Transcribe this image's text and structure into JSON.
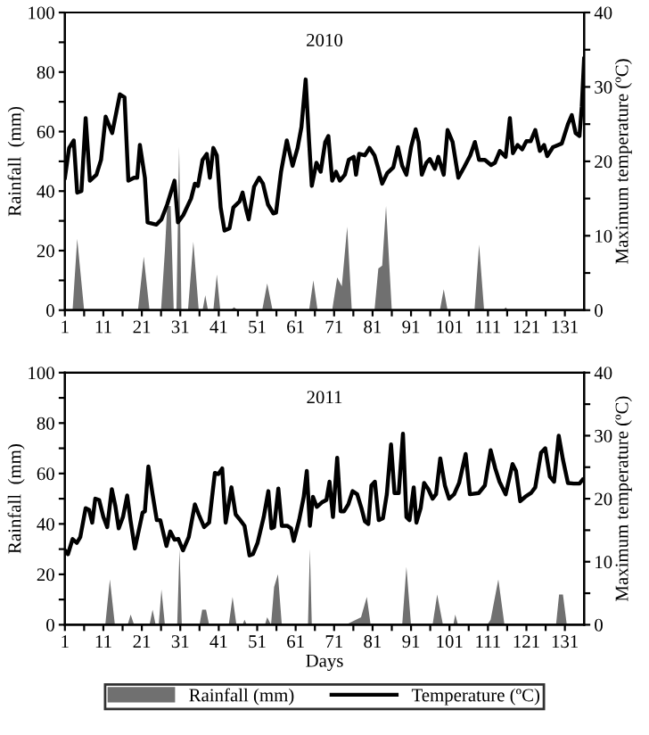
{
  "chart_data": [
    {
      "type": "area",
      "title": "2010",
      "ylabel": "Rainfall  (mm)",
      "y2label": "Maximum temperature (ºC)",
      "xlim": [
        1,
        136
      ],
      "ylim": [
        0,
        100
      ],
      "y2lim": [
        0,
        40
      ],
      "xticks": [
        1,
        {
          "value": 6,
          "label": null
        },
        11,
        {
          "value": 16,
          "label": null
        },
        21,
        {
          "value": 26,
          "label": null
        },
        31,
        {
          "value": 36,
          "label": null
        },
        41,
        {
          "value": 46,
          "label": null
        },
        51,
        {
          "value": 56,
          "label": null
        },
        61,
        {
          "value": 66,
          "label": null
        },
        71,
        {
          "value": 76,
          "label": null
        },
        81,
        {
          "value": 86,
          "label": null
        },
        91,
        {
          "value": 96,
          "label": null
        },
        101,
        {
          "value": 106,
          "label": null
        },
        111,
        {
          "value": 116,
          "label": null
        },
        121,
        {
          "value": 126,
          "label": null
        },
        131
      ],
      "yticks": [
        0,
        {
          "value": 10,
          "label": null
        },
        20,
        {
          "value": 30,
          "label": null
        },
        40,
        {
          "value": 50,
          "label": null
        },
        60,
        {
          "value": 70,
          "label": null
        },
        80,
        {
          "value": 90,
          "label": null
        },
        100
      ],
      "y2ticks": [
        0,
        {
          "value": 5,
          "label": null
        },
        10,
        {
          "value": 15,
          "label": null
        },
        20,
        {
          "value": 25,
          "label": null
        },
        30,
        {
          "value": 35,
          "label": null
        },
        40
      ],
      "grid": false,
      "legend": false,
      "series": [
        {
          "color": "#707070",
          "x": [
            1,
            3,
            4.2,
            6,
            20,
            21.5,
            23,
            26,
            27,
            27.6,
            28.5,
            29.3,
            30,
            30.7,
            31.3,
            33,
            34.4,
            35.8,
            36.8,
            37.5,
            38.2,
            39.6,
            40.5,
            41.4,
            44,
            45,
            46,
            52.3,
            53.6,
            55,
            64.5,
            65.6,
            66.7,
            70.5,
            71.8,
            73,
            74.4,
            75.6,
            81.5,
            82.5,
            83.5,
            84.5,
            86,
            98.5,
            99.5,
            100.5,
            107.5,
            108.7,
            110,
            115,
            115.6,
            116.3,
            136
          ],
          "values": [
            0,
            0,
            24,
            0,
            0,
            18,
            0,
            0,
            20,
            35,
            35,
            0,
            0,
            55,
            0,
            0,
            23,
            0,
            0,
            5,
            0,
            0,
            12,
            0,
            0,
            1,
            0,
            0,
            9,
            0,
            0,
            10,
            0,
            0,
            11,
            8,
            28,
            0,
            0,
            14,
            15,
            35,
            0,
            0,
            7,
            0,
            0,
            22,
            0,
            0,
            1,
            0,
            0
          ]
        },
        {
          "type": "line",
          "axis": "y2",
          "color": "#000000",
          "x": [
            1,
            2.1,
            3.3,
            4.2,
            5.3,
            6.4,
            7.5,
            9.2,
            10.4,
            11.6,
            13.3,
            15.3,
            16.5,
            17.5,
            19,
            19.8,
            20.5,
            21.8,
            22.5,
            24.8,
            26.1,
            27.6,
            29.5,
            30.4,
            31.8,
            33.8,
            34.8,
            35.6,
            36.8,
            37.9,
            38.7,
            39.6,
            40.5,
            41.5,
            42.5,
            43.8,
            44.8,
            46.4,
            47.2,
            48.2,
            48.8,
            50.2,
            51.5,
            52.5,
            53.8,
            55.2,
            55.9,
            57.2,
            58.7,
            60.2,
            61.5,
            62.5,
            63.6,
            64.5,
            65.2,
            66.4,
            67.5,
            68.7,
            69.5,
            70.5,
            71.5,
            72.5,
            73.8,
            74.8,
            76.1,
            76.7,
            77.5,
            79,
            80.2,
            81.5,
            82.5,
            83.5,
            84.8,
            86.4,
            87.6,
            88.7,
            89.8,
            91,
            92.2,
            93,
            93.8,
            95,
            95.9,
            97.2,
            98.1,
            99.5,
            100.5,
            101.8,
            103.3,
            104.8,
            106.4,
            107.6,
            108.7,
            110.2,
            111.8,
            112.8,
            114.1,
            115.6,
            116.7,
            117.5,
            118.7,
            119.9,
            121,
            122.1,
            123.3,
            124.5,
            125.6,
            126.4,
            127.9,
            130.2,
            131.8,
            132.8,
            133.8,
            134.8,
            135.4,
            136
          ],
          "values": [
            17.8,
            21.8,
            22.8,
            15.8,
            16,
            25.8,
            17.4,
            18.2,
            20.2,
            26,
            23.8,
            29,
            28.6,
            17.4,
            17.8,
            17.8,
            22.2,
            17.8,
            11.8,
            11.5,
            12.2,
            14.2,
            17.4,
            11.8,
            12.8,
            15,
            17,
            16.7,
            20.2,
            21,
            17.8,
            21.8,
            20.8,
            13.8,
            10.7,
            11,
            13.8,
            14.6,
            15.8,
            13.4,
            12.2,
            16.6,
            17.8,
            17,
            14.2,
            13,
            13.1,
            18.6,
            22.8,
            19.4,
            21.8,
            24.6,
            31,
            22.6,
            16.7,
            19.8,
            18.6,
            22.6,
            23.4,
            17.4,
            18.6,
            17.4,
            18.2,
            20.2,
            20.6,
            18.2,
            21,
            20.8,
            21.8,
            20.8,
            19,
            17,
            18.4,
            19.2,
            21.9,
            19.4,
            18.2,
            21.9,
            24.3,
            22.6,
            18.2,
            19.8,
            20.3,
            19,
            20.6,
            18.2,
            24.2,
            22.6,
            17.8,
            19.2,
            20.8,
            22.6,
            20.2,
            20.2,
            19.5,
            19.8,
            21.4,
            20.6,
            25.8,
            21.1,
            22.2,
            21.6,
            22.7,
            22.7,
            24.2,
            21.4,
            22.2,
            20.7,
            21.9,
            22.4,
            25,
            26.2,
            23.8,
            23.4,
            27.4,
            33.8
          ]
        }
      ]
    },
    {
      "type": "area",
      "title": "2011",
      "xlabel": "Days",
      "ylabel": "Rainfall  (mm)",
      "y2label": "Maximum temperature (ºC)",
      "xlim": [
        1,
        136
      ],
      "ylim": [
        0,
        100
      ],
      "y2lim": [
        0,
        40
      ],
      "xticks": [
        1,
        {
          "value": 6,
          "label": null
        },
        11,
        {
          "value": 16,
          "label": null
        },
        21,
        {
          "value": 26,
          "label": null
        },
        31,
        {
          "value": 36,
          "label": null
        },
        41,
        {
          "value": 46,
          "label": null
        },
        51,
        {
          "value": 56,
          "label": null
        },
        61,
        {
          "value": 66,
          "label": null
        },
        71,
        {
          "value": 76,
          "label": null
        },
        81,
        {
          "value": 86,
          "label": null
        },
        91,
        {
          "value": 96,
          "label": null
        },
        101,
        {
          "value": 106,
          "label": null
        },
        111,
        {
          "value": 116,
          "label": null
        },
        121,
        {
          "value": 126,
          "label": null
        },
        131
      ],
      "yticks": [
        0,
        {
          "value": 10,
          "label": null
        },
        20,
        {
          "value": 30,
          "label": null
        },
        40,
        {
          "value": 50,
          "label": null
        },
        60,
        {
          "value": 70,
          "label": null
        },
        80,
        {
          "value": 90,
          "label": null
        },
        100
      ],
      "y2ticks": [
        0,
        {
          "value": 5,
          "label": null
        },
        10,
        {
          "value": 15,
          "label": null
        },
        20,
        {
          "value": 25,
          "label": null
        },
        30,
        {
          "value": 35,
          "label": null
        },
        40
      ],
      "grid": false,
      "legend": "bottom",
      "series": [
        {
          "name": "Rainfall (mm)",
          "color": "#707070",
          "x": [
            1,
            11.5,
            12.7,
            14,
            17.3,
            18.1,
            19,
            23,
            23.8,
            24.6,
            25.4,
            26.1,
            27,
            30.2,
            30.8,
            31.4,
            36,
            36.7,
            37.7,
            38.5,
            43.6,
            44.6,
            45.6,
            47.2,
            47.7,
            48.3,
            53,
            53.6,
            54.6,
            55.4,
            56.4,
            57.4,
            64.2,
            64.7,
            65.2,
            74,
            78,
            79.5,
            80.5,
            88.7,
            89.8,
            91,
            96.6,
            97.8,
            99.3,
            102,
            102.5,
            103.2,
            110.8,
            111.7,
            113.7,
            115.3,
            128.7,
            129.5,
            130.5,
            131.5,
            136
          ],
          "values": [
            0,
            0,
            18,
            0,
            0,
            4,
            0,
            0,
            6,
            0,
            0,
            14,
            0,
            0,
            30,
            0,
            0,
            6,
            6,
            0,
            0,
            11,
            0,
            0,
            2,
            0,
            0,
            3,
            0,
            15,
            20,
            0,
            0,
            30,
            0,
            0,
            3,
            11,
            0,
            0,
            23,
            0,
            0,
            12,
            0,
            0,
            4,
            0,
            0,
            2,
            18,
            0,
            0,
            12,
            12,
            0,
            0
          ]
        },
        {
          "type": "line",
          "axis": "y2",
          "name": "Temperature (ºC)",
          "color": "#000000",
          "x": [
            1,
            1.8,
            3,
            4.1,
            5,
            6.4,
            7.3,
            8.1,
            8.9,
            9.9,
            11,
            12,
            13.2,
            14.1,
            15,
            16.1,
            17.2,
            18.1,
            19.2,
            20.4,
            21.2,
            21.8,
            22.7,
            23.8,
            24.9,
            25.8,
            27.4,
            28.4,
            29.5,
            30.5,
            31.7,
            33.2,
            34.8,
            35.8,
            37.2,
            38.5,
            40,
            40.9,
            41.9,
            42.8,
            44.3,
            45.4,
            46.6,
            47.7,
            49,
            49.9,
            51.1,
            52.7,
            53.9,
            54.7,
            55.4,
            56.5,
            57.4,
            58.8,
            59.8,
            60.5,
            61.9,
            63.1,
            63.9,
            64.7,
            65.5,
            66.5,
            67.8,
            69,
            69.8,
            70.7,
            71.8,
            72.7,
            73.6,
            74.7,
            75.8,
            77,
            78.1,
            79,
            79.9,
            80.7,
            81.6,
            82.6,
            83.7,
            84.7,
            85.8,
            86.7,
            87.8,
            88.9,
            89.8,
            90.6,
            91.7,
            92.4,
            93.5,
            94.4,
            95.5,
            96.6,
            97.5,
            98.6,
            99.8,
            100.9,
            102.2,
            103.5,
            105.2,
            106.3,
            108.6,
            110.2,
            111.7,
            112.9,
            114,
            115.6,
            117.4,
            118.3,
            119.4,
            120.7,
            122.2,
            123.3,
            124.8,
            125.9,
            127.1,
            128.2,
            129.4,
            130.5,
            131.8,
            133.3,
            134.8,
            135.6
          ],
          "values": [
            11.8,
            11.2,
            13.6,
            13,
            13.9,
            18.5,
            18.2,
            16.2,
            20,
            19.8,
            17.1,
            15.5,
            21.5,
            18.9,
            15.3,
            17.1,
            20.5,
            16.4,
            12.1,
            15.5,
            17.8,
            18,
            25.1,
            20.7,
            16.6,
            16.6,
            12.5,
            14.8,
            13.5,
            13.6,
            11.8,
            13.9,
            19.1,
            17.5,
            15.5,
            16.2,
            24.1,
            23.9,
            24.8,
            16.2,
            21.8,
            17.5,
            16.6,
            15.7,
            11,
            11.2,
            13,
            17.1,
            21.2,
            15.3,
            15.5,
            21.6,
            15.7,
            15.7,
            15.3,
            13.3,
            16.6,
            20.3,
            24.4,
            15.7,
            20.3,
            18.7,
            19.4,
            19.8,
            22.7,
            17.1,
            26.5,
            18,
            18,
            19.1,
            21.2,
            20.7,
            18.5,
            16.4,
            16,
            22.1,
            22.7,
            16.6,
            16.9,
            20.7,
            28.6,
            20.9,
            20.9,
            30.3,
            17.1,
            16.6,
            21.8,
            16.2,
            18.5,
            22.5,
            21.5,
            20,
            20.7,
            26.4,
            22.1,
            20,
            20.7,
            22.5,
            27.1,
            20.7,
            20.9,
            22.1,
            27.7,
            24.8,
            22.7,
            20.7,
            25.5,
            24.4,
            19.6,
            20.3,
            20.9,
            21.8,
            27.3,
            28,
            23.5,
            22.7,
            30,
            26.2,
            22.5,
            22.4,
            22.4,
            23
          ]
        }
      ]
    }
  ]
}
